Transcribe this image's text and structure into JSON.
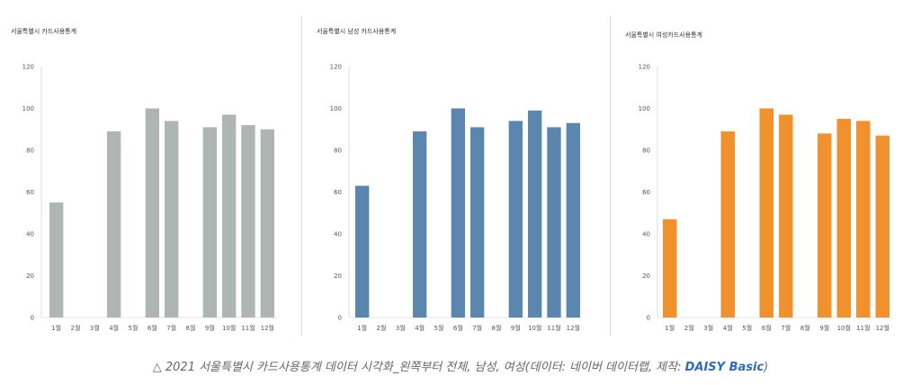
{
  "chart_data": [
    {
      "type": "bar",
      "title": "서울특별시 카드사용통계",
      "categories": [
        "1월",
        "2월",
        "3월",
        "4월",
        "5월",
        "6월",
        "7월",
        "8월",
        "9월",
        "10월",
        "11월",
        "12월"
      ],
      "values": [
        55,
        0,
        0,
        89,
        0,
        100,
        94,
        0,
        91,
        97,
        92,
        90
      ],
      "ylim": [
        0,
        120
      ],
      "yticks": [
        0,
        20,
        40,
        60,
        80,
        100,
        120
      ],
      "color": "#aeb5b2",
      "grid": false
    },
    {
      "type": "bar",
      "title": "서울특별시 남성 카드사용통계",
      "categories": [
        "1월",
        "2월",
        "3월",
        "4월",
        "5월",
        "6월",
        "7월",
        "8월",
        "9월",
        "10월",
        "11월",
        "12월"
      ],
      "values": [
        63,
        0,
        0,
        89,
        0,
        100,
        91,
        0,
        94,
        99,
        91,
        93
      ],
      "ylim": [
        0,
        120
      ],
      "yticks": [
        0,
        20,
        40,
        60,
        80,
        100,
        120
      ],
      "color": "#5b86b0",
      "grid": false
    },
    {
      "type": "bar",
      "title": "서울특별시 여성카드사용통계",
      "categories": [
        "1월",
        "2월",
        "3월",
        "4월",
        "5월",
        "6월",
        "7월",
        "8월",
        "9월",
        "10월",
        "11월",
        "12월"
      ],
      "values": [
        47,
        0,
        0,
        89,
        0,
        100,
        97,
        0,
        88,
        95,
        94,
        87
      ],
      "ylim": [
        0,
        120
      ],
      "yticks": [
        0,
        20,
        40,
        60,
        80,
        100,
        120
      ],
      "color": "#f0912e",
      "grid": false
    }
  ],
  "caption": {
    "text": "△ 2021 서울특별시 카드사용통계 데이터 시각화_왼쪽부터 전체, 남성, 여성(데이터: 네이버 데이터랩, 제작: ",
    "credit": "DAISY Basic",
    "suffix": ")"
  }
}
